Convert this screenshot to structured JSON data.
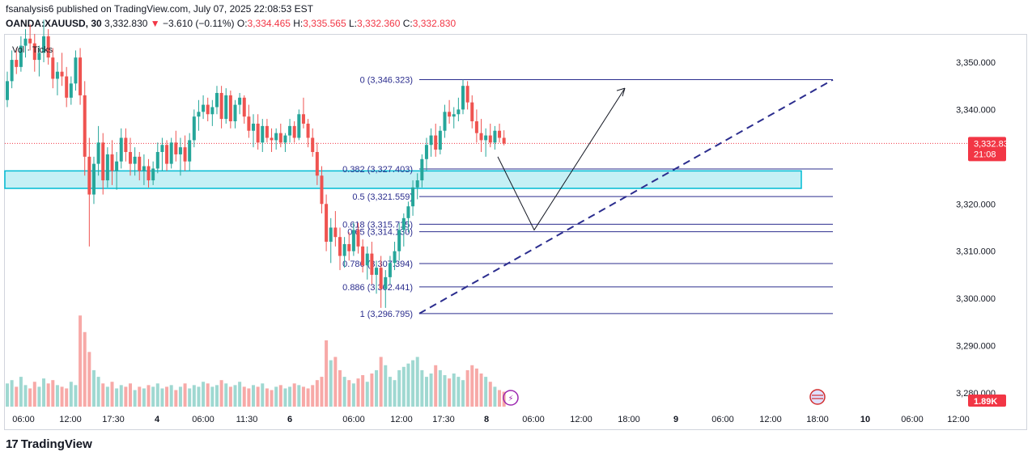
{
  "header": {
    "published": "fsanalysis6 published on TradingView.com, July 07, 2025 22:08:53 EST",
    "symbol": "OANDA:XAUUSD, 30",
    "price": "3,332.830",
    "change_arrow": "▼",
    "change": "−3.610 (−0.11%)",
    "o_label": "O:",
    "o": "3,334.465",
    "h_label": "H:",
    "h": "3,335.565",
    "l_label": "L:",
    "l": "3,332.360",
    "c_label": "C:",
    "c": "3,332.830"
  },
  "legend": {
    "vol": "Vol · Ticks"
  },
  "footer": {
    "brand": "TradingView"
  },
  "colors": {
    "up": "#26a69a",
    "down": "#ef5350",
    "fib": "#2b2d8e",
    "zone_fill": "#b2ebf2",
    "zone_border": "#00bcd4",
    "vol_up": "#9fd8d1",
    "vol_down": "#f7a9a7",
    "price_badge": "#f23645"
  },
  "chart_data": {
    "type": "candlestick",
    "y_axis": {
      "min": 3275,
      "max": 3360,
      "ticks": [
        "3,350.000",
        "3,340.000",
        "3,320.000",
        "3,310.000",
        "3,300.000",
        "3,290.000",
        "3,280.000"
      ],
      "tick_values": [
        3350,
        3340,
        3320,
        3310,
        3300,
        3290,
        3280
      ]
    },
    "x_axis": {
      "labels": [
        "06:00",
        "12:00",
        "17:30",
        "4",
        "06:00",
        "11:30",
        "6",
        "06:00",
        "12:00",
        "17:30",
        "8",
        "06:00",
        "12:00",
        "18:00",
        "9",
        "06:00",
        "12:00",
        "18:00",
        "10",
        "06:00",
        "12:00"
      ],
      "bold": [
        "4",
        "6",
        "8",
        "9",
        "10"
      ]
    },
    "current_price": {
      "value": 3332.83,
      "label": "3,332.830",
      "countdown": "21:08"
    },
    "volume_badge": "1.89K",
    "fibonacci": [
      {
        "level": "0",
        "price": 3346.323,
        "label": "0 (3,346.323)"
      },
      {
        "level": "0.382",
        "price": 3327.403,
        "label": "0.382 (3,327.403)"
      },
      {
        "level": "0.5",
        "price": 3321.559,
        "label": "0.5 (3,321.559)"
      },
      {
        "level": "0.618",
        "price": 3315.715,
        "label": "0.618 (3,315.715)"
      },
      {
        "level": "0.65",
        "price": 3314.13,
        "label": "0.65 (3,314.130)"
      },
      {
        "level": "0.786",
        "price": 3307.394,
        "label": "0.786 (3,307.394)"
      },
      {
        "level": "0.886",
        "price": 3302.441,
        "label": "0.886 (3,302.441)"
      },
      {
        "level": "1",
        "price": 3296.795,
        "label": "1 (3,296.795)"
      }
    ],
    "zone": {
      "top": 3327.0,
      "bottom": 3323.3
    },
    "projection": [
      {
        "time_index": 0,
        "price": 3330.0
      },
      {
        "time_index": 1,
        "price": 3314.5
      },
      {
        "time_index": 2,
        "price": 3344.5
      }
    ],
    "trendline": [
      {
        "price": 3296.8
      },
      {
        "price": 3346.3
      }
    ],
    "candles": [
      [
        3342.0,
        3348.0,
        3340.5,
        3346.0
      ],
      [
        3346.0,
        3352.5,
        3344.5,
        3350.5
      ],
      [
        3350.5,
        3353.0,
        3347.5,
        3349.0
      ],
      [
        3349.0,
        3355.5,
        3348.0,
        3353.5
      ],
      [
        3353.5,
        3357.0,
        3351.0,
        3355.0
      ],
      [
        3355.0,
        3358.0,
        3352.5,
        3354.0
      ],
      [
        3354.0,
        3356.0,
        3348.0,
        3350.5
      ],
      [
        3350.5,
        3353.5,
        3347.0,
        3352.0
      ],
      [
        3352.0,
        3359.0,
        3350.0,
        3355.5
      ],
      [
        3355.5,
        3357.0,
        3349.5,
        3351.0
      ],
      [
        3351.0,
        3353.0,
        3344.5,
        3346.5
      ],
      [
        3346.5,
        3350.0,
        3343.0,
        3348.0
      ],
      [
        3348.0,
        3352.0,
        3345.0,
        3347.0
      ],
      [
        3347.0,
        3349.0,
        3340.5,
        3342.5
      ],
      [
        3342.5,
        3347.0,
        3341.0,
        3345.5
      ],
      [
        3345.5,
        3352.5,
        3344.0,
        3351.0
      ],
      [
        3351.0,
        3353.0,
        3341.0,
        3343.0
      ],
      [
        3343.0,
        3346.0,
        3326.0,
        3330.0
      ],
      [
        3330.0,
        3334.0,
        3311.0,
        3322.0
      ],
      [
        3322.0,
        3330.0,
        3320.0,
        3328.5
      ],
      [
        3328.5,
        3336.5,
        3326.0,
        3333.0
      ],
      [
        3333.0,
        3335.0,
        3322.0,
        3325.0
      ],
      [
        3325.0,
        3332.0,
        3323.5,
        3330.5
      ],
      [
        3330.5,
        3333.5,
        3324.0,
        3327.0
      ],
      [
        3327.0,
        3331.0,
        3323.0,
        3329.0
      ],
      [
        3329.0,
        3336.0,
        3327.5,
        3334.0
      ],
      [
        3334.0,
        3336.0,
        3329.0,
        3331.0
      ],
      [
        3331.0,
        3334.0,
        3326.0,
        3328.5
      ],
      [
        3328.5,
        3332.0,
        3326.0,
        3330.0
      ],
      [
        3330.0,
        3331.0,
        3325.0,
        3327.0
      ],
      [
        3327.0,
        3330.5,
        3324.0,
        3328.0
      ],
      [
        3328.0,
        3329.5,
        3323.5,
        3325.0
      ],
      [
        3325.0,
        3329.0,
        3324.0,
        3327.5
      ],
      [
        3327.5,
        3333.0,
        3326.5,
        3331.0
      ],
      [
        3331.0,
        3334.0,
        3327.0,
        3332.5
      ],
      [
        3332.5,
        3333.5,
        3327.0,
        3328.5
      ],
      [
        3328.5,
        3334.0,
        3327.5,
        3333.0
      ],
      [
        3333.0,
        3335.5,
        3329.0,
        3330.5
      ],
      [
        3330.5,
        3334.0,
        3326.0,
        3332.0
      ],
      [
        3332.0,
        3334.5,
        3327.0,
        3329.0
      ],
      [
        3329.0,
        3335.0,
        3327.0,
        3333.5
      ],
      [
        3333.5,
        3340.0,
        3332.0,
        3338.5
      ],
      [
        3338.5,
        3342.0,
        3335.5,
        3339.5
      ],
      [
        3339.5,
        3343.0,
        3338.0,
        3341.0
      ],
      [
        3341.0,
        3342.5,
        3337.5,
        3339.0
      ],
      [
        3339.0,
        3342.0,
        3336.5,
        3340.5
      ],
      [
        3340.5,
        3345.0,
        3339.0,
        3343.5
      ],
      [
        3343.5,
        3345.0,
        3336.0,
        3338.0
      ],
      [
        3338.0,
        3344.5,
        3337.0,
        3343.0
      ],
      [
        3343.0,
        3344.0,
        3336.0,
        3337.5
      ],
      [
        3337.5,
        3342.0,
        3336.0,
        3341.0
      ],
      [
        3341.0,
        3343.5,
        3339.0,
        3342.5
      ],
      [
        3342.5,
        3343.0,
        3337.0,
        3338.5
      ],
      [
        3338.5,
        3341.0,
        3334.0,
        3335.5
      ],
      [
        3335.5,
        3339.0,
        3332.0,
        3337.0
      ],
      [
        3337.0,
        3339.0,
        3331.5,
        3333.0
      ],
      [
        3333.0,
        3338.0,
        3331.0,
        3336.5
      ],
      [
        3336.5,
        3338.0,
        3333.0,
        3334.0
      ],
      [
        3334.0,
        3336.0,
        3331.0,
        3333.5
      ],
      [
        3333.5,
        3336.0,
        3331.5,
        3335.0
      ],
      [
        3335.0,
        3337.0,
        3332.0,
        3333.0
      ],
      [
        3333.0,
        3335.0,
        3331.0,
        3334.5
      ],
      [
        3334.5,
        3338.0,
        3333.0,
        3336.5
      ],
      [
        3336.5,
        3337.5,
        3333.0,
        3334.0
      ],
      [
        3334.0,
        3340.0,
        3333.5,
        3339.0
      ],
      [
        3339.0,
        3342.5,
        3336.0,
        3337.0
      ],
      [
        3337.0,
        3338.0,
        3332.0,
        3334.0
      ],
      [
        3334.0,
        3336.0,
        3330.0,
        3331.0
      ],
      [
        3331.0,
        3333.0,
        3324.0,
        3326.0
      ],
      [
        3326.0,
        3328.0,
        3318.0,
        3320.0
      ],
      [
        3320.0,
        3322.0,
        3310.0,
        3312.0
      ],
      [
        3312.0,
        3317.0,
        3307.5,
        3315.0
      ],
      [
        3315.0,
        3318.5,
        3311.0,
        3313.0
      ],
      [
        3313.0,
        3315.0,
        3306.0,
        3309.0
      ],
      [
        3309.0,
        3313.0,
        3306.5,
        3311.5
      ],
      [
        3311.5,
        3314.0,
        3308.0,
        3310.0
      ],
      [
        3310.0,
        3316.0,
        3309.0,
        3314.5
      ],
      [
        3314.5,
        3316.0,
        3309.5,
        3311.0
      ],
      [
        3311.0,
        3312.5,
        3305.5,
        3307.0
      ],
      [
        3307.0,
        3311.0,
        3304.0,
        3309.5
      ],
      [
        3309.5,
        3312.0,
        3303.0,
        3305.0
      ],
      [
        3305.0,
        3308.0,
        3301.0,
        3306.5
      ],
      [
        3306.5,
        3309.0,
        3298.0,
        3302.0
      ],
      [
        3302.0,
        3306.0,
        3298.0,
        3304.5
      ],
      [
        3304.5,
        3309.0,
        3303.0,
        3307.5
      ],
      [
        3307.5,
        3312.0,
        3306.0,
        3310.0
      ],
      [
        3310.0,
        3316.0,
        3308.0,
        3314.5
      ],
      [
        3314.5,
        3318.0,
        3311.0,
        3317.0
      ],
      [
        3317.0,
        3320.5,
        3314.0,
        3319.5
      ],
      [
        3319.5,
        3325.0,
        3317.5,
        3323.5
      ],
      [
        3323.5,
        3326.5,
        3321.0,
        3325.0
      ],
      [
        3325.0,
        3330.5,
        3323.5,
        3329.5
      ],
      [
        3329.5,
        3334.0,
        3327.0,
        3332.5
      ],
      [
        3332.5,
        3336.0,
        3330.0,
        3334.5
      ],
      [
        3334.5,
        3337.0,
        3330.0,
        3331.5
      ],
      [
        3331.5,
        3336.5,
        3330.5,
        3335.5
      ],
      [
        3335.5,
        3341.0,
        3334.0,
        3339.5
      ],
      [
        3339.5,
        3342.0,
        3337.0,
        3338.5
      ],
      [
        3338.5,
        3340.5,
        3336.0,
        3339.0
      ],
      [
        3339.0,
        3342.5,
        3337.5,
        3340.0
      ],
      [
        3340.0,
        3346.3,
        3339.0,
        3345.0
      ],
      [
        3345.0,
        3346.0,
        3340.0,
        3341.5
      ],
      [
        3341.5,
        3343.0,
        3336.0,
        3337.5
      ],
      [
        3337.5,
        3340.0,
        3333.0,
        3335.0
      ],
      [
        3335.0,
        3338.0,
        3331.0,
        3333.5
      ],
      [
        3333.5,
        3336.0,
        3330.0,
        3334.5
      ],
      [
        3334.5,
        3337.0,
        3332.0,
        3333.0
      ],
      [
        3333.0,
        3336.5,
        3331.5,
        3335.5
      ],
      [
        3335.5,
        3337.0,
        3333.0,
        3334.0
      ],
      [
        3334.0,
        3335.6,
        3332.4,
        3332.8
      ]
    ],
    "volumes": [
      14,
      16,
      12,
      18,
      13,
      11,
      15,
      12,
      17,
      14,
      16,
      13,
      12,
      11,
      15,
      13,
      55,
      45,
      33,
      22,
      18,
      14,
      12,
      15,
      11,
      13,
      12,
      14,
      10,
      12,
      11,
      13,
      12,
      14,
      11,
      12,
      13,
      10,
      12,
      14,
      11,
      13,
      12,
      15,
      14,
      12,
      13,
      16,
      14,
      12,
      13,
      15,
      12,
      11,
      13,
      12,
      14,
      11,
      10,
      12,
      13,
      11,
      12,
      14,
      13,
      12,
      11,
      13,
      16,
      18,
      40,
      28,
      30,
      22,
      18,
      16,
      14,
      17,
      19,
      15,
      20,
      22,
      30,
      25,
      18,
      16,
      22,
      24,
      26,
      28,
      30,
      22,
      18,
      20,
      25,
      22,
      19,
      17,
      20,
      18,
      16,
      22,
      25,
      23,
      20,
      18,
      15,
      12,
      10,
      9
    ]
  }
}
